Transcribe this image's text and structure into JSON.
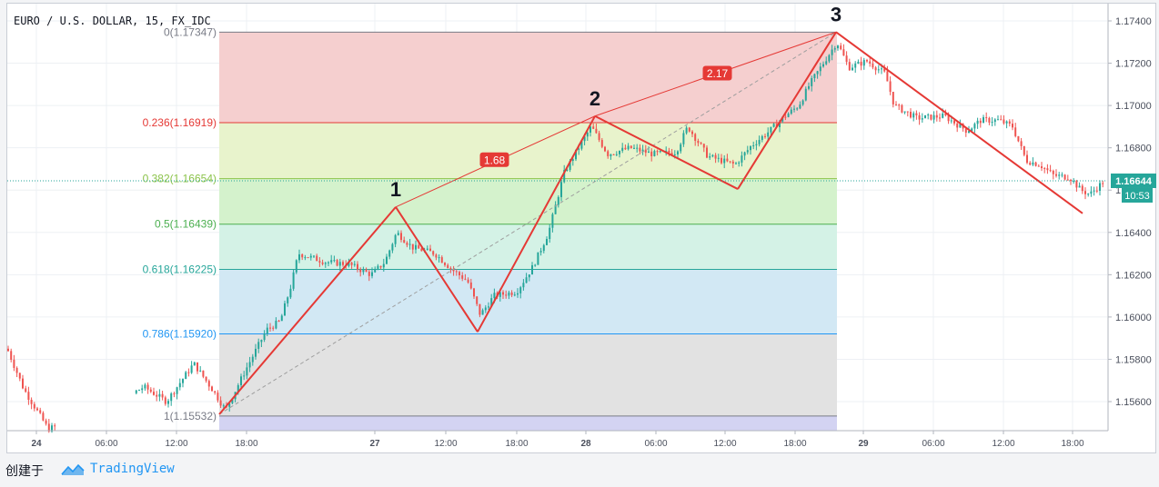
{
  "footer": {
    "created_label": "创建于",
    "brand": "TradingView"
  },
  "chart_data": {
    "type": "candlestick",
    "title": "EURO / U.S. DOLLAR, 15, FX_IDC",
    "ylim": [
      1.1547,
      1.1745
    ],
    "y_ticks": [
      "1.17400",
      "1.17200",
      "1.17000",
      "1.16800",
      "1.16600",
      "1.16400",
      "1.16200",
      "1.16000",
      "1.15800",
      "1.15600"
    ],
    "x_ticks": [
      "24",
      "06:00",
      "12:00",
      "18:00",
      "27",
      "12:00",
      "18:00",
      "28",
      "06:00",
      "12:00",
      "18:00",
      "29",
      "06:00",
      "12:00",
      "18:00"
    ],
    "bold_x_ticks": [
      "24",
      "27",
      "28",
      "29"
    ],
    "last_price": {
      "value": 1.16644,
      "label": "1.16644",
      "time_label": "10:53",
      "color": "#26a69a"
    },
    "fib_retracement": {
      "levels": [
        {
          "ratio": 0,
          "label": "0(1.17347)",
          "price": 1.17347,
          "color": "#787b86",
          "fill": "#f5cfcf"
        },
        {
          "ratio": 0.236,
          "label": "0.236(1.16919)",
          "price": 1.16919,
          "color": "#e53935",
          "fill": "#e8f3cc"
        },
        {
          "ratio": 0.382,
          "label": "0.382(1.16654)",
          "price": 1.16654,
          "color": "#8bc34a",
          "fill": "#d4f2cc"
        },
        {
          "ratio": 0.5,
          "label": "0.5(1.16439)",
          "price": 1.16439,
          "color": "#4caf50",
          "fill": "#d4f2e6"
        },
        {
          "ratio": 0.618,
          "label": "0.618(1.16225)",
          "price": 1.16225,
          "color": "#26a69a",
          "fill": "#d2e8f4"
        },
        {
          "ratio": 0.786,
          "label": "0.786(1.15920)",
          "price": 1.1592,
          "color": "#2196f3",
          "fill": "#e2e2e2"
        },
        {
          "ratio": 1,
          "label": "1(1.15532)",
          "price": 1.15532,
          "color": "#787b86",
          "fill": "#d3d3f2"
        }
      ]
    },
    "wave_points": [
      {
        "label": "",
        "price": 1.1554
      },
      {
        "label": "1",
        "price": 1.1652
      },
      {
        "label": "",
        "price": 1.1593
      },
      {
        "label": "2",
        "price": 1.1695
      },
      {
        "label": "",
        "price": 1.16605
      },
      {
        "label": "3",
        "price": 1.17347
      },
      {
        "label": "",
        "price": 1.1649
      }
    ],
    "ratio_labels": [
      "1.68",
      "2.17"
    ],
    "colors": {
      "up": "#26a69a",
      "down": "#ef5350",
      "wave": "#e53935",
      "grid": "#edf0f4",
      "axis_text": "#4a4f5c"
    }
  }
}
